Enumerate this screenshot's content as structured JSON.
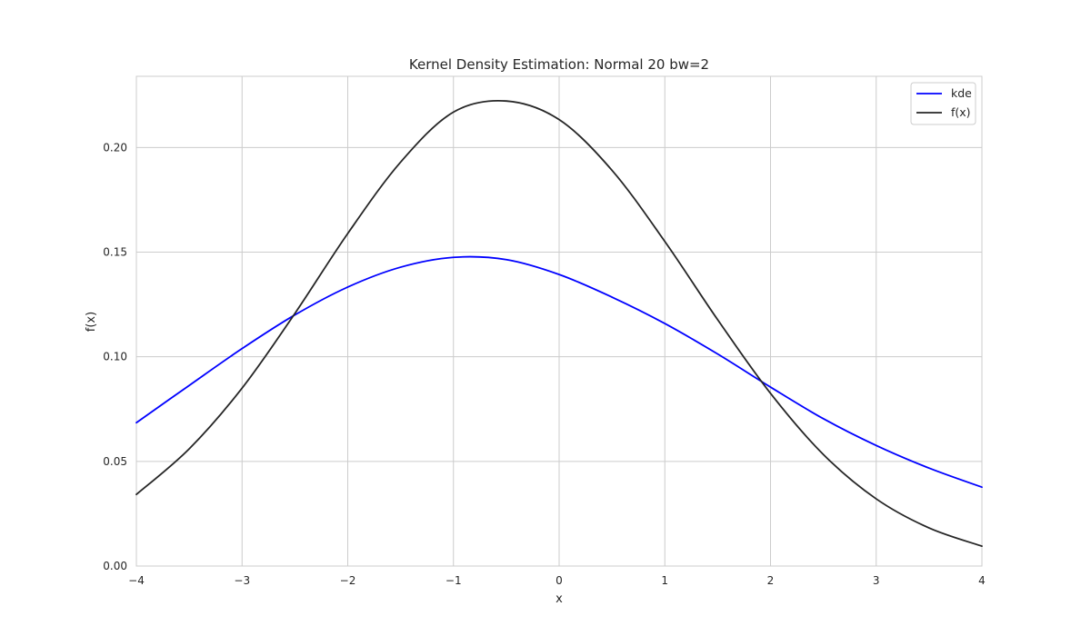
{
  "chart_data": {
    "type": "line",
    "title": "Kernel Density Estimation: Normal 20 bw=2",
    "xlabel": "x",
    "ylabel": "f(x)",
    "xlim": [
      -4,
      4
    ],
    "ylim": [
      0,
      0.234
    ],
    "x_ticks": [
      -4,
      -3,
      -2,
      -1,
      0,
      1,
      2,
      3,
      4
    ],
    "x_tick_labels": [
      "−4",
      "−3",
      "−2",
      "−1",
      "0",
      "1",
      "2",
      "3",
      "4"
    ],
    "y_ticks": [
      0,
      0.05,
      0.1,
      0.15,
      0.2
    ],
    "y_tick_labels": [
      "0.00",
      "0.05",
      "0.10",
      "0.15",
      "0.20"
    ],
    "grid": true,
    "legend_position": "top-right",
    "x": [
      -4,
      -3.5,
      -3,
      -2.5,
      -2,
      -1.5,
      -1,
      -0.5,
      0,
      0.5,
      1,
      1.5,
      2,
      2.5,
      3,
      3.5,
      4
    ],
    "series": [
      {
        "name": "kde",
        "color": "#0000ff",
        "values": [
          0.0685,
          0.0863,
          0.1039,
          0.12,
          0.1333,
          0.1428,
          0.1475,
          0.1464,
          0.1393,
          0.1285,
          0.1159,
          0.1013,
          0.0855,
          0.0704,
          0.0576,
          0.0468,
          0.0377
        ]
      },
      {
        "name": "f(x)",
        "color": "#262626",
        "values": [
          0.0342,
          0.056,
          0.085,
          0.1207,
          0.1589,
          0.193,
          0.2169,
          0.2222,
          0.2133,
          0.1891,
          0.1551,
          0.1177,
          0.0825,
          0.0533,
          0.0321,
          0.0182,
          0.0095
        ]
      }
    ]
  }
}
